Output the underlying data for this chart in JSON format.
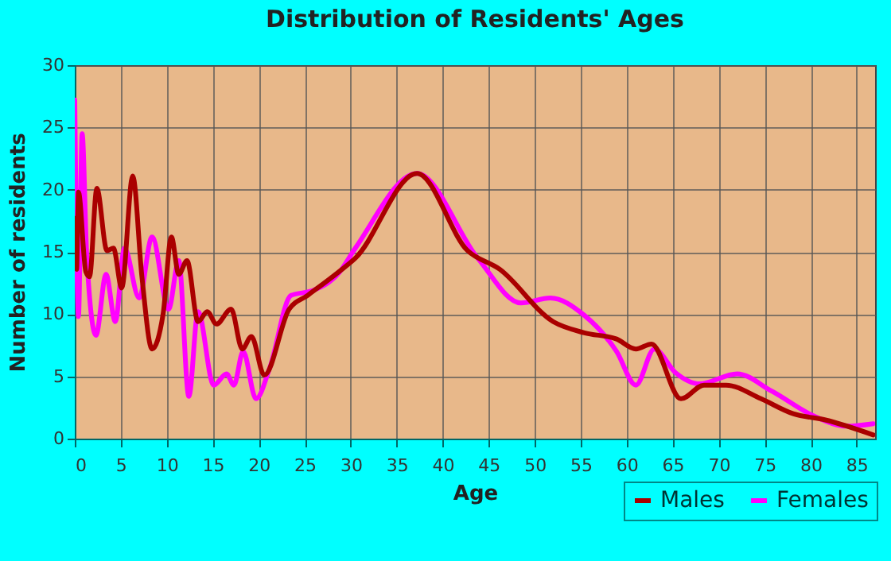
{
  "chart_data": {
    "type": "line",
    "title": "Distribution of Residents' Ages",
    "xlabel": "Age",
    "ylabel": "Number of residents",
    "xlim": [
      0,
      87
    ],
    "xticks": [
      0,
      5,
      10,
      15,
      20,
      25,
      30,
      35,
      40,
      45,
      50,
      55,
      60,
      65,
      70,
      75,
      80,
      85
    ],
    "ylim": [
      0,
      30
    ],
    "yticks": [
      0,
      5,
      10,
      15,
      20,
      25,
      30
    ],
    "grid": true,
    "legend": "bottom right",
    "series": [
      {
        "name": "Males",
        "color": "#aa0000",
        "x": [
          0,
          0.2,
          0.4,
          1.2,
          1.6,
          2.4,
          3.5,
          4.2,
          5.1,
          6.3,
          7.3,
          8.4,
          9.6,
          10.5,
          11.3,
          12.2,
          13.4,
          14.4,
          15.4,
          17,
          18.2,
          19.2,
          20.6,
          23.3,
          25.3,
          28.7,
          30.5,
          37.2,
          42.7,
          46.2,
          52,
          55.4,
          58.9,
          61,
          62.7,
          65.9,
          68.4,
          70.8,
          74.6,
          78.1,
          81.6,
          86.8
        ],
        "values": [
          17.7,
          13.6,
          19.8,
          13.4,
          13,
          20.1,
          15.1,
          15.3,
          12.1,
          21.1,
          13,
          7.2,
          10,
          16.2,
          13.2,
          14.3,
          9.4,
          10.2,
          9.2,
          10.4,
          7.2,
          8.2,
          5.1,
          10.4,
          11.5,
          13.4,
          14.5,
          21.3,
          15.1,
          13.6,
          9.4,
          8.5,
          8,
          7.2,
          7.6,
          3.2,
          4.3,
          4.3,
          3.2,
          2,
          1.5,
          0.3
        ]
      },
      {
        "name": "Females",
        "color": "#ff00ff",
        "x": [
          0,
          0.4,
          0.8,
          1.3,
          2.3,
          3.4,
          4.4,
          5.4,
          7,
          8.4,
          10.2,
          11.3,
          12.4,
          13.4,
          15.1,
          16.5,
          17.3,
          18.3,
          19.7,
          21.2,
          23.5,
          25.9,
          28.7,
          30.5,
          37.2,
          43.8,
          48.5,
          51.7,
          55.4,
          58.9,
          61,
          63,
          65.3,
          67.9,
          72,
          75.8,
          80.4,
          83.9,
          86.8
        ],
        "values": [
          27.2,
          9.8,
          24.5,
          14.7,
          8.3,
          13.2,
          9.4,
          15.3,
          11.3,
          16.2,
          10.4,
          14.3,
          3.4,
          10.2,
          4.3,
          5.2,
          4.3,
          7,
          3.2,
          5.7,
          11.5,
          11.9,
          13.3,
          15.3,
          21.3,
          14.5,
          10.9,
          11.3,
          9.9,
          7,
          4.3,
          7.2,
          5.3,
          4.4,
          5.2,
          3.8,
          1.8,
          1,
          1.2
        ]
      }
    ]
  }
}
